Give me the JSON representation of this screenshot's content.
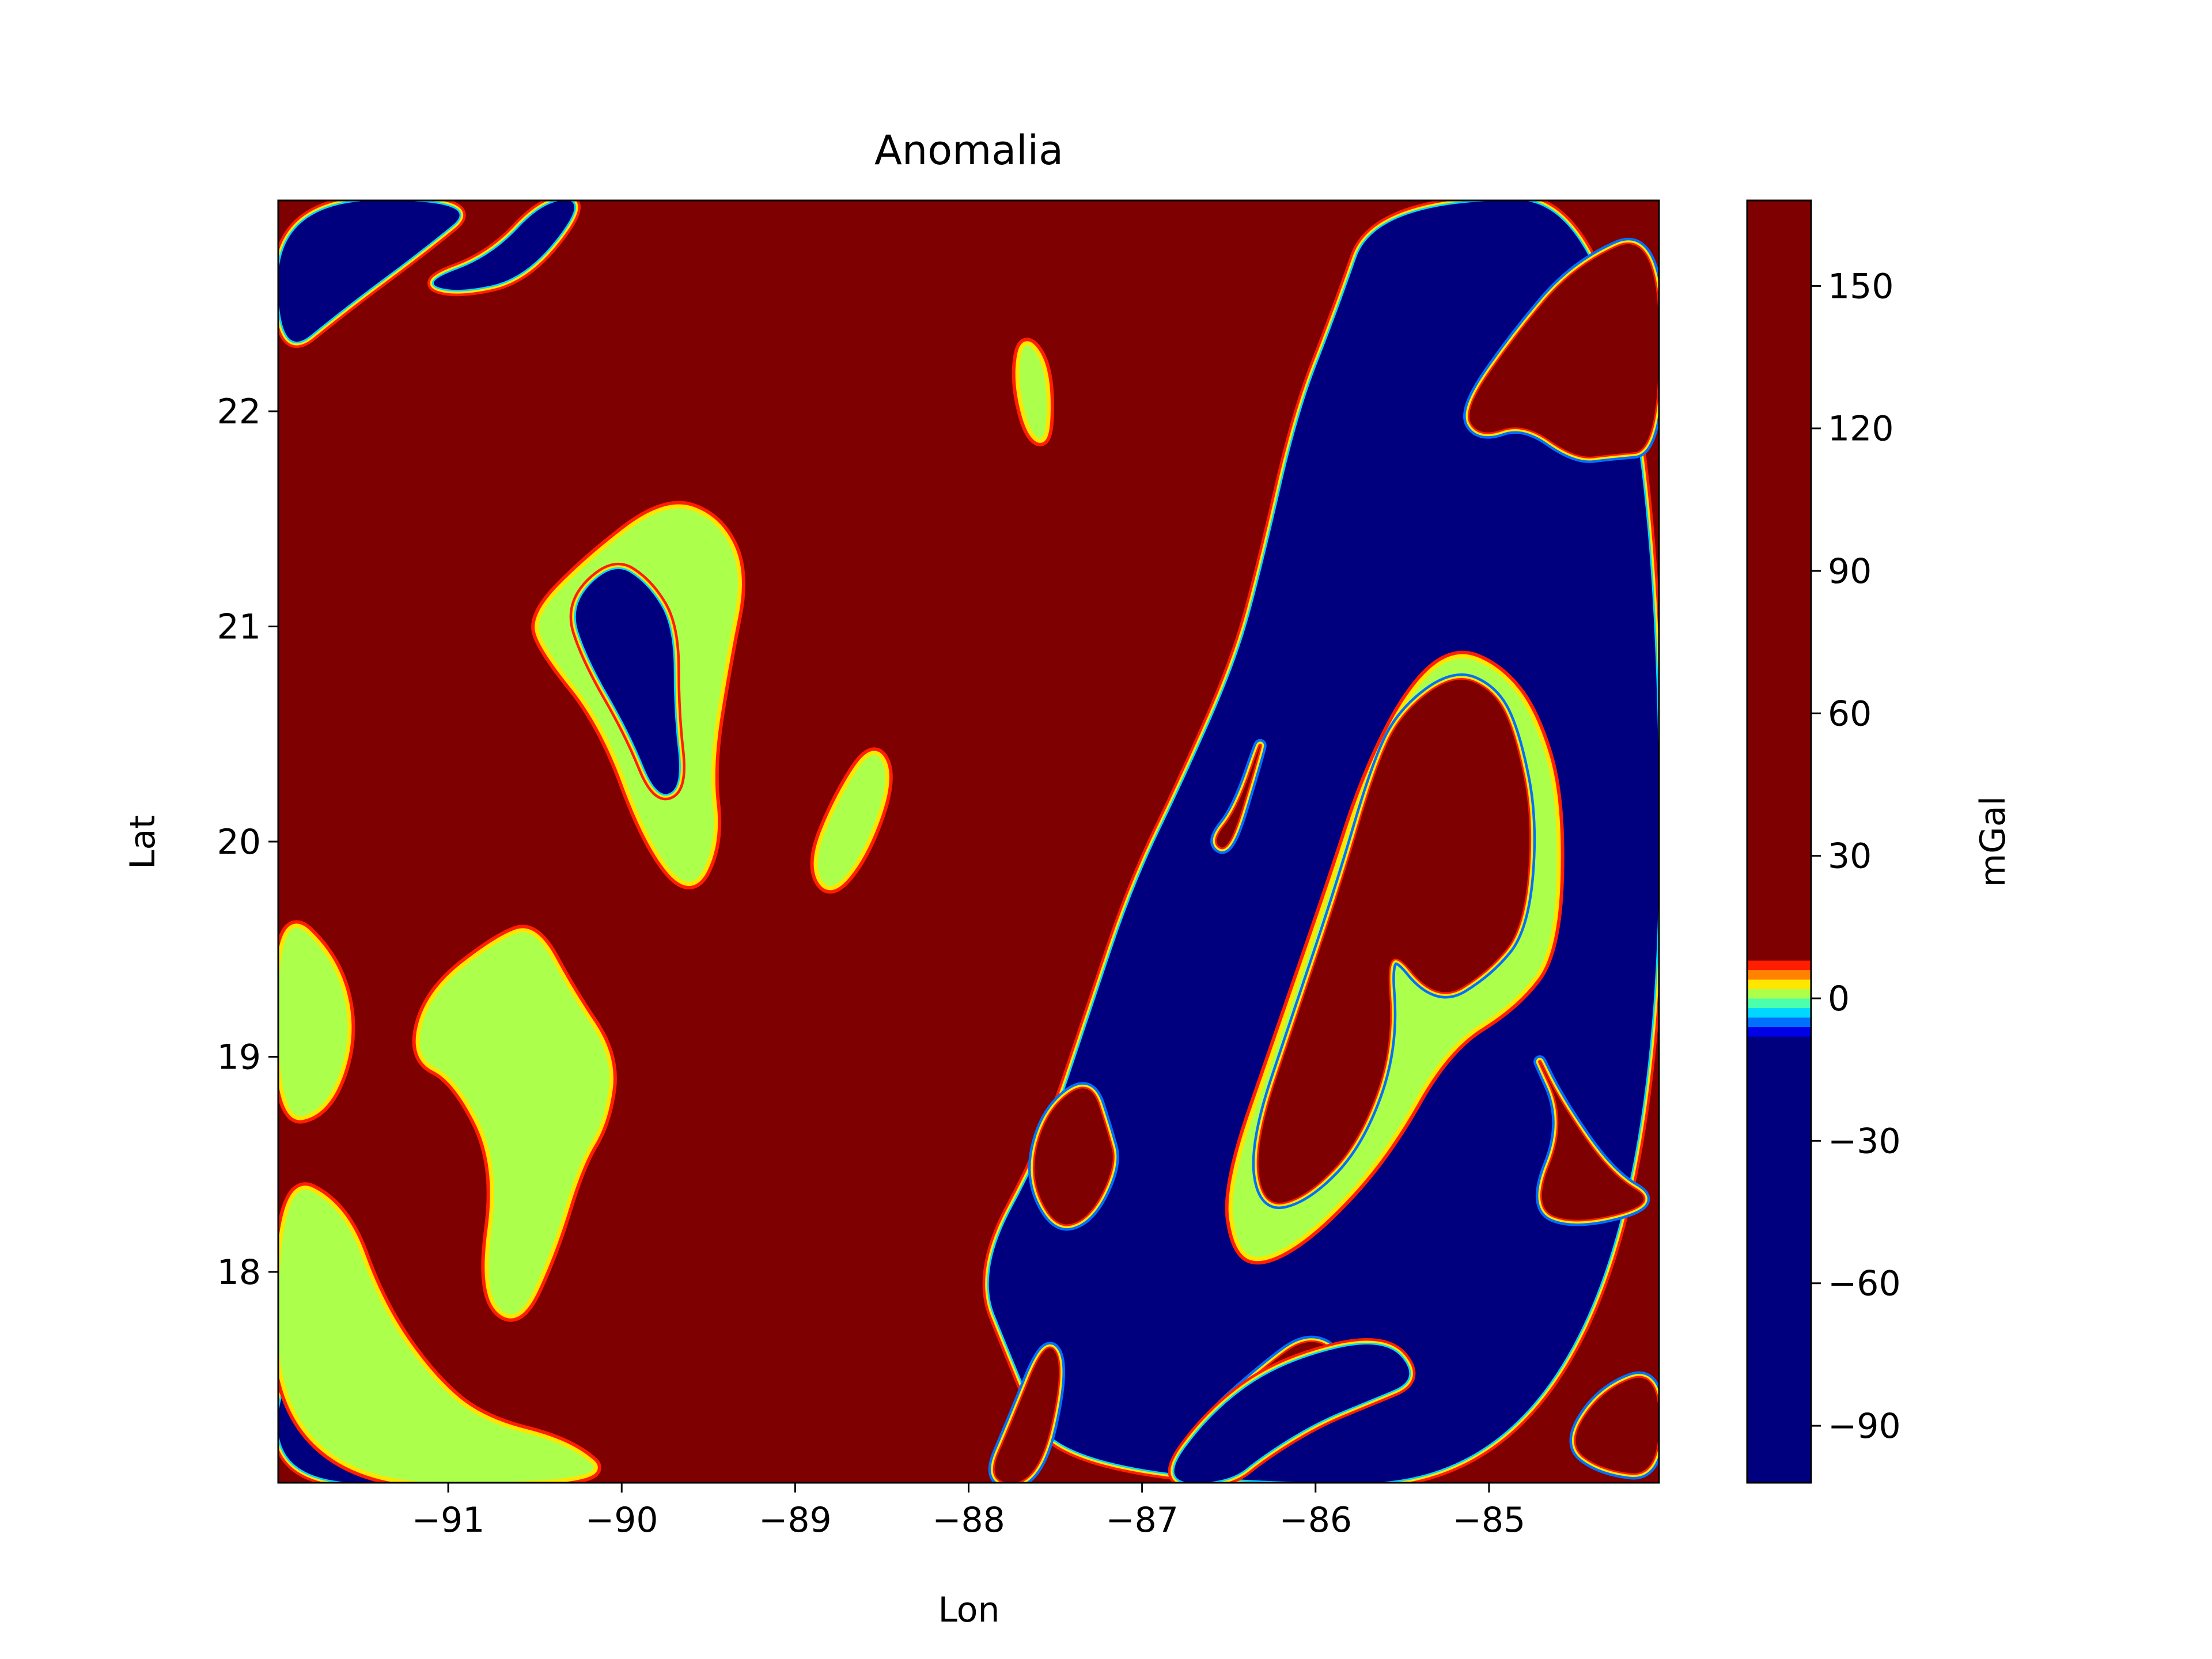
{
  "chart_data": {
    "type": "heatmap",
    "title": "Anomalia",
    "xlabel": "Lon",
    "ylabel": "Lat",
    "xlim": [
      -91.98,
      -84.02
    ],
    "ylim": [
      17.02,
      22.98
    ],
    "xticks": [
      {
        "value": -91,
        "label": "−91"
      },
      {
        "value": -90,
        "label": "−90"
      },
      {
        "value": -89,
        "label": "−89"
      },
      {
        "value": -88,
        "label": "−88"
      },
      {
        "value": -87,
        "label": "−87"
      },
      {
        "value": -86,
        "label": "−86"
      },
      {
        "value": -85,
        "label": "−85"
      }
    ],
    "yticks": [
      {
        "value": 18,
        "label": "18"
      },
      {
        "value": 19,
        "label": "19"
      },
      {
        "value": 20,
        "label": "20"
      },
      {
        "value": 21,
        "label": "21"
      },
      {
        "value": 22,
        "label": "22"
      }
    ],
    "colorbar": {
      "label": "mGal",
      "range": [
        -102,
        168
      ],
      "ticks": [
        {
          "value": -90,
          "label": "−90"
        },
        {
          "value": -60,
          "label": "−60"
        },
        {
          "value": -30,
          "label": "−30"
        },
        {
          "value": 0,
          "label": "0"
        },
        {
          "value": 30,
          "label": "30"
        },
        {
          "value": 60,
          "label": "60"
        },
        {
          "value": 90,
          "label": "90"
        },
        {
          "value": 120,
          "label": "120"
        },
        {
          "value": 150,
          "label": "150"
        }
      ],
      "levels": [
        {
          "from": -102,
          "to": -8,
          "color": "#00007f"
        },
        {
          "from": -8,
          "to": -6,
          "color": "#0000e8"
        },
        {
          "from": -6,
          "to": -4,
          "color": "#0070ff"
        },
        {
          "from": -4,
          "to": -2,
          "color": "#00d8ff"
        },
        {
          "from": -2,
          "to": 0,
          "color": "#4bffac"
        },
        {
          "from": 0,
          "to": 2,
          "color": "#acff4b"
        },
        {
          "from": 2,
          "to": 4,
          "color": "#ffe600"
        },
        {
          "from": 4,
          "to": 6,
          "color": "#ff8200"
        },
        {
          "from": 6,
          "to": 8,
          "color": "#ff1e00"
        },
        {
          "from": 8,
          "to": 168,
          "color": "#7f0000"
        }
      ]
    },
    "regions": [
      {
        "name": "east-low-zone",
        "level": -90,
        "points": [
          [
            -87.45,
            17.02
          ],
          [
            -87.75,
            17.6
          ],
          [
            -87.95,
            18.0
          ],
          [
            -87.55,
            18.6
          ],
          [
            -87.3,
            19.2
          ],
          [
            -87.05,
            19.8
          ],
          [
            -86.75,
            20.3
          ],
          [
            -86.45,
            20.85
          ],
          [
            -86.3,
            21.3
          ],
          [
            -86.1,
            22.0
          ],
          [
            -85.88,
            22.45
          ],
          [
            -85.65,
            22.98
          ],
          [
            -84.02,
            22.98
          ],
          [
            -84.02,
            17.02
          ]
        ]
      },
      {
        "name": "west-low-strip",
        "level": -90,
        "points": [
          [
            -91.98,
            22.23
          ],
          [
            -91.6,
            22.48
          ],
          [
            -91.15,
            22.75
          ],
          [
            -90.8,
            22.98
          ],
          [
            -91.98,
            22.98
          ]
        ]
      },
      {
        "name": "north-low-channel",
        "level": -90,
        "points": [
          [
            -91.15,
            22.6
          ],
          [
            -90.75,
            22.72
          ],
          [
            -90.45,
            22.98
          ],
          [
            -90.2,
            22.98
          ],
          [
            -90.55,
            22.62
          ],
          [
            -90.95,
            22.55
          ]
        ]
      },
      {
        "name": "southwest-low",
        "level": -90,
        "points": [
          [
            -91.98,
            17.02
          ],
          [
            -91.98,
            17.55
          ],
          [
            -91.55,
            17.45
          ],
          [
            -91.2,
            17.18
          ],
          [
            -91.0,
            17.02
          ]
        ]
      },
      {
        "name": "west-edge-low",
        "level": -90,
        "points": [
          [
            -91.98,
            18.82
          ],
          [
            -91.85,
            19.0
          ],
          [
            -91.98,
            19.28
          ]
        ]
      },
      {
        "name": "northeast-high",
        "level": 150,
        "points": [
          [
            -84.02,
            22.85
          ],
          [
            -84.5,
            22.68
          ],
          [
            -84.85,
            22.35
          ],
          [
            -85.15,
            22.0
          ],
          [
            -85.05,
            21.88
          ],
          [
            -84.8,
            21.95
          ],
          [
            -84.5,
            21.78
          ],
          [
            -84.3,
            21.8
          ],
          [
            -84.02,
            21.82
          ]
        ]
      },
      {
        "name": "southeast-high",
        "level": 150,
        "points": [
          [
            -84.02,
            18.32
          ],
          [
            -84.3,
            18.45
          ],
          [
            -84.6,
            18.8
          ],
          [
            -84.75,
            19.05
          ],
          [
            -84.55,
            18.7
          ],
          [
            -84.75,
            18.3
          ],
          [
            -84.5,
            18.22
          ]
        ]
      },
      {
        "name": "southeast-corner-high",
        "level": 150,
        "points": [
          [
            -84.02,
            17.55
          ],
          [
            -84.35,
            17.45
          ],
          [
            -84.55,
            17.2
          ],
          [
            -84.35,
            17.08
          ],
          [
            -84.02,
            17.05
          ]
        ]
      },
      {
        "name": "eastern-ridge-band",
        "level": 0,
        "points": [
          [
            -86.45,
            18.1
          ],
          [
            -86.5,
            18.4
          ],
          [
            -86.2,
            19.1
          ],
          [
            -85.9,
            19.8
          ],
          [
            -85.7,
            20.3
          ],
          [
            -85.45,
            20.7
          ],
          [
            -85.2,
            20.88
          ],
          [
            -84.95,
            20.8
          ],
          [
            -84.75,
            20.6
          ],
          [
            -84.6,
            20.2
          ],
          [
            -84.62,
            19.5
          ],
          [
            -84.85,
            19.25
          ],
          [
            -85.25,
            19.05
          ],
          [
            -85.6,
            18.55
          ],
          [
            -86.0,
            18.2
          ],
          [
            -86.3,
            18.05
          ]
        ]
      },
      {
        "name": "eastern-ridge-high",
        "level": 150,
        "points": [
          [
            -86.3,
            18.3
          ],
          [
            -86.35,
            18.6
          ],
          [
            -86.1,
            19.2
          ],
          [
            -85.85,
            19.8
          ],
          [
            -85.65,
            20.35
          ],
          [
            -85.5,
            20.6
          ],
          [
            -85.2,
            20.78
          ],
          [
            -84.97,
            20.7
          ],
          [
            -84.85,
            20.5
          ],
          [
            -84.75,
            20.1
          ],
          [
            -84.8,
            19.6
          ],
          [
            -85.0,
            19.4
          ],
          [
            -85.3,
            19.25
          ],
          [
            -85.6,
            19.55
          ],
          [
            -85.55,
            19.05
          ],
          [
            -85.75,
            18.6
          ],
          [
            -86.05,
            18.35
          ]
        ]
      },
      {
        "name": "mid-ridge-island",
        "level": 150,
        "points": [
          [
            -87.55,
            18.75
          ],
          [
            -87.3,
            18.9
          ],
          [
            -87.2,
            18.65
          ],
          [
            -87.15,
            18.5
          ],
          [
            -87.3,
            18.25
          ],
          [
            -87.5,
            18.2
          ],
          [
            -87.65,
            18.45
          ]
        ]
      },
      {
        "name": "south-channel-island",
        "level": 150,
        "points": [
          [
            -86.65,
            17.3
          ],
          [
            -86.3,
            17.55
          ],
          [
            -86.05,
            17.7
          ],
          [
            -85.85,
            17.62
          ],
          [
            -86.1,
            17.45
          ],
          [
            -86.25,
            17.3
          ],
          [
            -86.45,
            17.1
          ],
          [
            -86.7,
            17.1
          ]
        ]
      },
      {
        "name": "cozumel-high",
        "level": 150,
        "points": [
          [
            -86.35,
            20.35
          ],
          [
            -86.3,
            20.5
          ],
          [
            -86.45,
            20.15
          ],
          [
            -86.6,
            20.0
          ],
          [
            -86.5,
            19.95
          ]
        ]
      },
      {
        "name": "southern-shelf-band",
        "level": -30,
        "points": [
          [
            -86.9,
            17.02
          ],
          [
            -86.6,
            17.35
          ],
          [
            -86.2,
            17.58
          ],
          [
            -85.6,
            17.7
          ],
          [
            -85.4,
            17.5
          ],
          [
            -85.7,
            17.4
          ],
          [
            -86.0,
            17.3
          ],
          [
            -86.3,
            17.15
          ],
          [
            -86.5,
            17.02
          ]
        ]
      },
      {
        "name": "yucatan-west-anomaly",
        "level": 0,
        "points": [
          [
            -90.5,
            21.05
          ],
          [
            -90.2,
            21.3
          ],
          [
            -89.75,
            21.58
          ],
          [
            -89.45,
            21.5
          ],
          [
            -89.3,
            21.25
          ],
          [
            -89.4,
            20.85
          ],
          [
            -89.5,
            20.35
          ],
          [
            -89.45,
            20.0
          ],
          [
            -89.6,
            19.75
          ],
          [
            -89.85,
            20.0
          ],
          [
            -90.1,
            20.55
          ],
          [
            -90.45,
            20.9
          ]
        ]
      },
      {
        "name": "yucatan-west-core",
        "level": -60,
        "points": [
          [
            -90.3,
            21.1
          ],
          [
            -90.05,
            21.3
          ],
          [
            -89.85,
            21.2
          ],
          [
            -89.7,
            21.0
          ],
          [
            -89.7,
            20.6
          ],
          [
            -89.65,
            20.25
          ],
          [
            -89.8,
            20.2
          ],
          [
            -89.95,
            20.5
          ],
          [
            -90.2,
            20.85
          ]
        ]
      },
      {
        "name": "west-interior-anomaly",
        "level": 0,
        "points": [
          [
            -91.1,
            19.3
          ],
          [
            -90.7,
            19.55
          ],
          [
            -90.5,
            19.6
          ],
          [
            -90.3,
            19.3
          ],
          [
            -90.05,
            19.0
          ],
          [
            -90.1,
            18.7
          ],
          [
            -90.25,
            18.5
          ],
          [
            -90.4,
            18.1
          ],
          [
            -90.6,
            17.75
          ],
          [
            -90.8,
            17.9
          ],
          [
            -90.7,
            18.5
          ],
          [
            -90.95,
            18.9
          ],
          [
            -91.2,
            19.0
          ]
        ]
      },
      {
        "name": "southwest-coast-anomaly",
        "level": 0,
        "points": [
          [
            -91.98,
            18.45
          ],
          [
            -91.6,
            18.3
          ],
          [
            -91.4,
            17.85
          ],
          [
            -91.1,
            17.5
          ],
          [
            -90.8,
            17.3
          ],
          [
            -90.3,
            17.2
          ],
          [
            -90.05,
            17.02
          ],
          [
            -91.98,
            17.02
          ]
        ]
      },
      {
        "name": "west-coast-anomaly",
        "level": 0,
        "points": [
          [
            -91.98,
            19.7
          ],
          [
            -91.65,
            19.45
          ],
          [
            -91.55,
            19.1
          ],
          [
            -91.7,
            18.75
          ],
          [
            -91.98,
            18.7
          ]
        ]
      },
      {
        "name": "central-spot",
        "level": 0,
        "points": [
          [
            -88.55,
            20.45
          ],
          [
            -88.45,
            20.3
          ],
          [
            -88.6,
            19.95
          ],
          [
            -88.8,
            19.75
          ],
          [
            -88.9,
            19.9
          ],
          [
            -88.75,
            20.2
          ]
        ]
      },
      {
        "name": "north-central-spot",
        "level": 0,
        "points": [
          [
            -87.68,
            22.35
          ],
          [
            -87.55,
            22.2
          ],
          [
            -87.55,
            21.85
          ],
          [
            -87.65,
            21.9
          ],
          [
            -87.72,
            22.15
          ]
        ]
      },
      {
        "name": "south-mid-island",
        "level": 150,
        "points": [
          [
            -87.9,
            17.02
          ],
          [
            -87.75,
            17.3
          ],
          [
            -87.55,
            17.7
          ],
          [
            -87.45,
            17.55
          ],
          [
            -87.6,
            17.02
          ]
        ]
      }
    ]
  }
}
